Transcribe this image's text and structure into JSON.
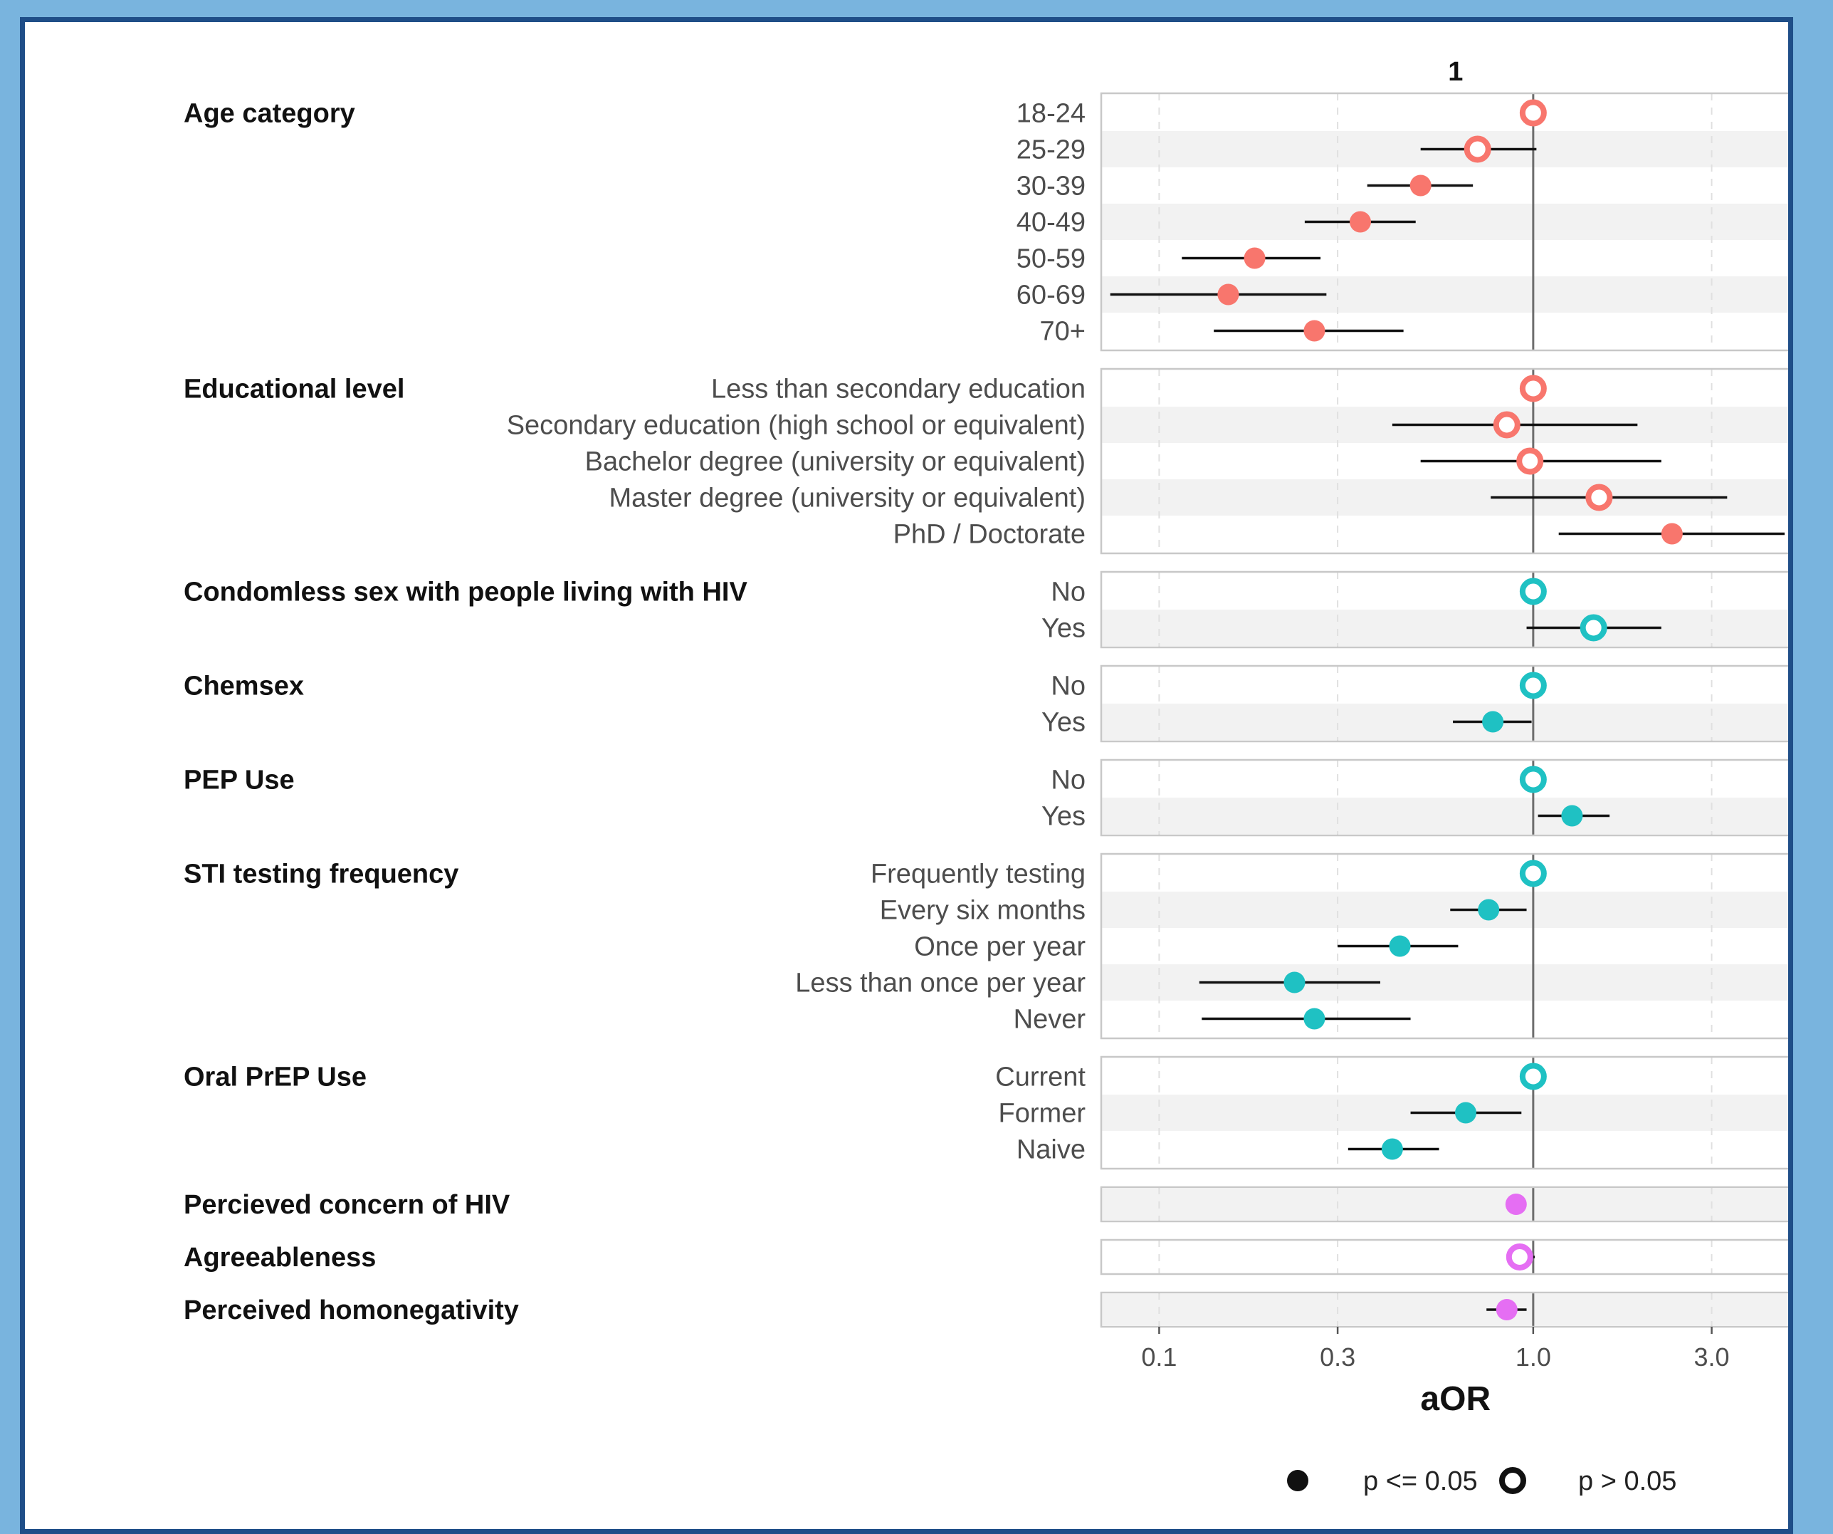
{
  "chart_data": {
    "type": "forest",
    "facet_label": "1",
    "xlabel": "aOR",
    "x_scale": "log10",
    "xlim": [
      0.07,
      5.6
    ],
    "xticks": [
      0.1,
      0.3,
      1.0,
      3.0
    ],
    "xtick_labels": [
      "0.1",
      "0.3",
      "1.0",
      "3.0"
    ],
    "reference_line": 1.0,
    "grid": "vertical dashed at ticks",
    "colors": {
      "sociodemographic": "#f8766d",
      "behavioural": "#1fc1c3",
      "psychological": "#e56ef3",
      "ci_line": "#111111",
      "band": "#f2f2f2",
      "panel_border": "#c8c8c8"
    },
    "legend": {
      "position": "bottom",
      "items": [
        {
          "label": "p <= 0.05",
          "marker": "filled"
        },
        {
          "label": "p > 0.05",
          "marker": "hollow"
        }
      ]
    },
    "groups": [
      {
        "name": "Age category",
        "color_key": "sociodemographic",
        "rows": [
          {
            "label": "18-24",
            "aor": 1.0,
            "lo": null,
            "hi": null,
            "significant": false
          },
          {
            "label": "25-29",
            "aor": 0.71,
            "lo": 0.5,
            "hi": 1.02,
            "significant": false
          },
          {
            "label": "30-39",
            "aor": 0.5,
            "lo": 0.36,
            "hi": 0.69,
            "significant": true
          },
          {
            "label": "40-49",
            "aor": 0.345,
            "lo": 0.245,
            "hi": 0.485,
            "significant": true
          },
          {
            "label": "50-59",
            "aor": 0.18,
            "lo": 0.115,
            "hi": 0.27,
            "significant": true
          },
          {
            "label": "60-69",
            "aor": 0.153,
            "lo": 0.074,
            "hi": 0.28,
            "significant": true
          },
          {
            "label": "70+",
            "aor": 0.26,
            "lo": 0.14,
            "hi": 0.45,
            "significant": true
          }
        ]
      },
      {
        "name": "Educational level",
        "color_key": "sociodemographic",
        "rows": [
          {
            "label": "Less than secondary education",
            "aor": 1.0,
            "lo": null,
            "hi": null,
            "significant": false
          },
          {
            "label": "Secondary education (high school or equivalent)",
            "aor": 0.85,
            "lo": 0.42,
            "hi": 1.9,
            "significant": false
          },
          {
            "label": "Bachelor degree (university or equivalent)",
            "aor": 0.98,
            "lo": 0.5,
            "hi": 2.2,
            "significant": false
          },
          {
            "label": "Master degree (university or equivalent)",
            "aor": 1.5,
            "lo": 0.77,
            "hi": 3.3,
            "significant": false
          },
          {
            "label": "PhD / Doctorate",
            "aor": 2.35,
            "lo": 1.17,
            "hi": 4.7,
            "significant": true
          }
        ]
      },
      {
        "name": "Condomless sex with people living with HIV",
        "color_key": "behavioural",
        "rows": [
          {
            "label": "No",
            "aor": 1.0,
            "lo": null,
            "hi": null,
            "significant": false
          },
          {
            "label": "Yes",
            "aor": 1.45,
            "lo": 0.96,
            "hi": 2.2,
            "significant": false
          }
        ]
      },
      {
        "name": "Chemsex",
        "color_key": "behavioural",
        "rows": [
          {
            "label": "No",
            "aor": 1.0,
            "lo": null,
            "hi": null,
            "significant": false
          },
          {
            "label": "Yes",
            "aor": 0.78,
            "lo": 0.61,
            "hi": 0.99,
            "significant": true
          }
        ]
      },
      {
        "name": "PEP Use",
        "color_key": "behavioural",
        "rows": [
          {
            "label": "No",
            "aor": 1.0,
            "lo": null,
            "hi": null,
            "significant": false
          },
          {
            "label": "Yes",
            "aor": 1.27,
            "lo": 1.03,
            "hi": 1.6,
            "significant": true
          }
        ]
      },
      {
        "name": "STI testing frequency",
        "color_key": "behavioural",
        "rows": [
          {
            "label": "Frequently testing",
            "aor": 1.0,
            "lo": null,
            "hi": null,
            "significant": false
          },
          {
            "label": "Every six months",
            "aor": 0.76,
            "lo": 0.6,
            "hi": 0.96,
            "significant": true
          },
          {
            "label": "Once per year",
            "aor": 0.44,
            "lo": 0.3,
            "hi": 0.63,
            "significant": true
          },
          {
            "label": "Less than once per year",
            "aor": 0.23,
            "lo": 0.128,
            "hi": 0.39,
            "significant": true
          },
          {
            "label": "Never",
            "aor": 0.26,
            "lo": 0.13,
            "hi": 0.47,
            "significant": true
          }
        ]
      },
      {
        "name": "Oral PrEP Use",
        "color_key": "behavioural",
        "rows": [
          {
            "label": "Current",
            "aor": 1.0,
            "lo": null,
            "hi": null,
            "significant": false
          },
          {
            "label": "Former",
            "aor": 0.66,
            "lo": 0.47,
            "hi": 0.93,
            "significant": true
          },
          {
            "label": "Naive",
            "aor": 0.42,
            "lo": 0.32,
            "hi": 0.56,
            "significant": true
          }
        ]
      },
      {
        "name": "Percieved concern of HIV",
        "color_key": "psychological",
        "rows": [
          {
            "label": "",
            "aor": 0.9,
            "lo": 0.86,
            "hi": 0.94,
            "significant": true
          }
        ]
      },
      {
        "name": "Agreeableness",
        "color_key": "psychological",
        "rows": [
          {
            "label": "",
            "aor": 0.92,
            "lo": 0.87,
            "hi": 1.01,
            "significant": false
          }
        ]
      },
      {
        "name": "Perceived homonegativity",
        "color_key": "psychological",
        "rows": [
          {
            "label": "",
            "aor": 0.85,
            "lo": 0.75,
            "hi": 0.96,
            "significant": true
          }
        ]
      }
    ]
  }
}
